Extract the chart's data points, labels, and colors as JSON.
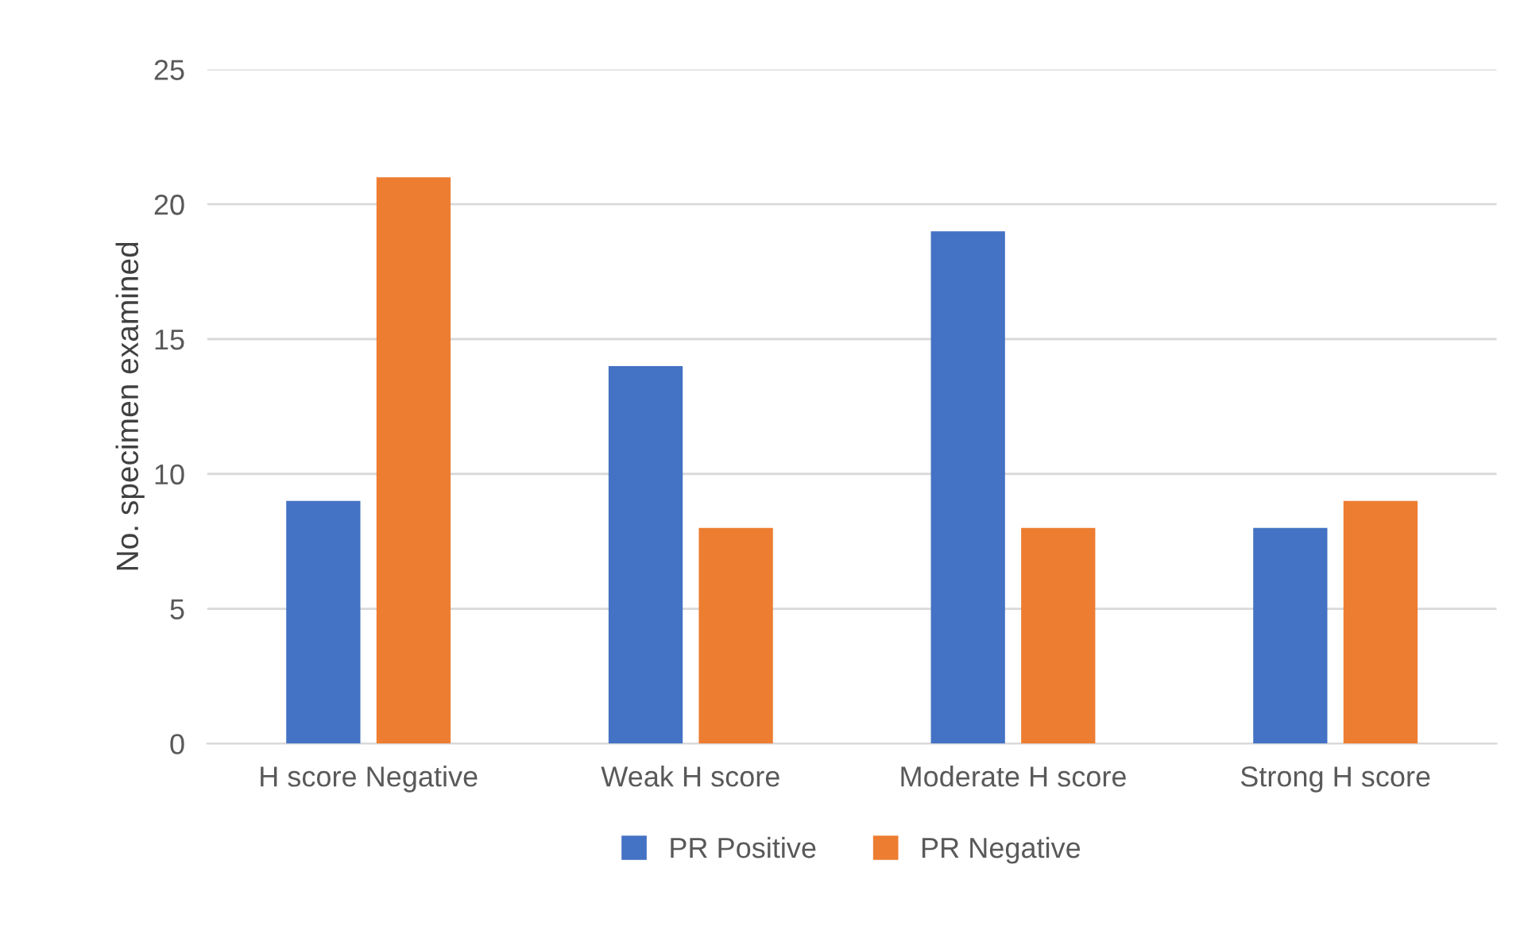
{
  "chart_data": {
    "type": "bar",
    "ylabel": "No. specimen examined",
    "categories": [
      "H score Negative",
      "Weak H score",
      "Moderate H score",
      "Strong H score"
    ],
    "series": [
      {
        "name": "PR Positive",
        "color": "#4472c4",
        "values": [
          9,
          14,
          19,
          8
        ]
      },
      {
        "name": "PR Negative",
        "color": "#ed7d31",
        "values": [
          21,
          8,
          8,
          9
        ]
      }
    ],
    "ylim": [
      0,
      25
    ],
    "yticks": [
      0,
      5,
      10,
      15,
      20,
      25
    ],
    "grid": "y",
    "legend": "bottom"
  }
}
